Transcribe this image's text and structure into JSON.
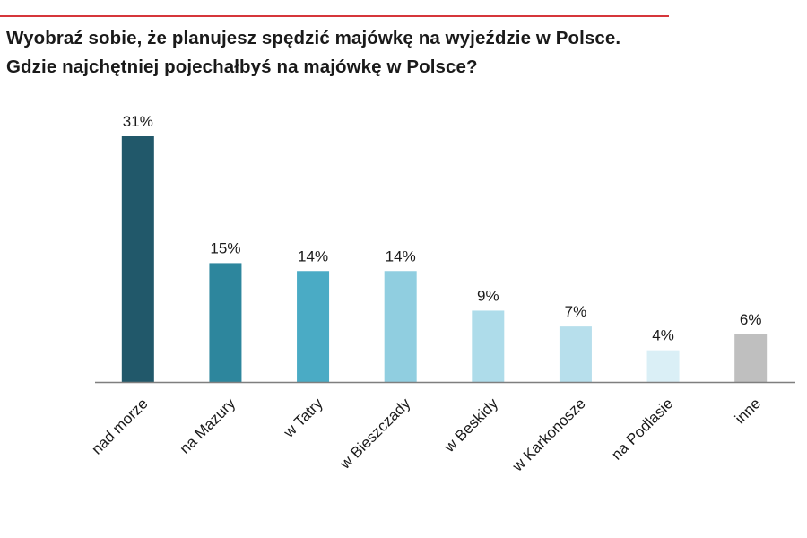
{
  "chart_data": {
    "type": "bar",
    "title_lines": [
      "Wyobraź sobie, że planujesz spędzić majówkę na wyjeździe w Polsce.",
      "Gdzie najchętniej pojechałbyś na majówkę w Polsce?"
    ],
    "categories": [
      "nad morze",
      "na Mazury",
      "w Tatry",
      "w Bieszczady",
      "w Beskidy",
      "w Karkonosze",
      "na Podlasie",
      "inne"
    ],
    "values": [
      31,
      15,
      14,
      14,
      9,
      7,
      4,
      6
    ],
    "value_labels": [
      "31%",
      "15%",
      "14%",
      "14%",
      "9%",
      "7%",
      "4%",
      "6%"
    ],
    "unit": "%",
    "colors": [
      "#21586a",
      "#2d869d",
      "#4aabc5",
      "#90cee0",
      "#aedcea",
      "#b7dfec",
      "#daeff6",
      "#bfbfbf"
    ],
    "xlabel": "",
    "ylabel": "",
    "ylim": [
      0,
      31
    ],
    "grid": false,
    "legend": "none"
  },
  "colors": {
    "accent_line": "#d6363b",
    "axis": "#7f7f7f",
    "text": "#1a1a1a"
  }
}
